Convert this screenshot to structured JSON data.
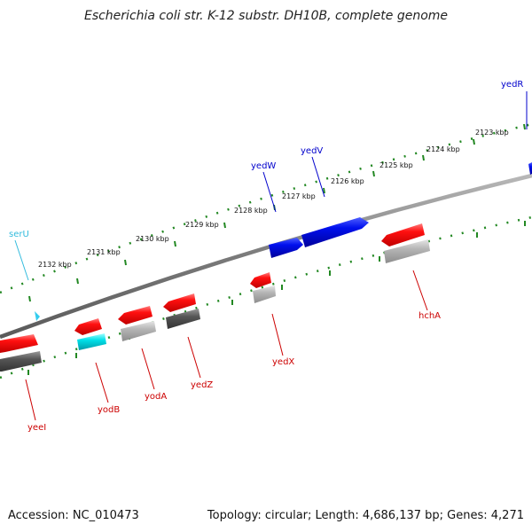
{
  "header": {
    "title": "Escherichia coli str. K-12 substr. DH10B, complete genome"
  },
  "footer": {
    "accession": "Accession: NC_010473",
    "summary": "Topology: circular; Length: 4,686,137 bp; Genes: 4,271"
  },
  "scale_labels": [
    "2123 kbp",
    "2124 kbp",
    "2125 kbp",
    "2126 kbp",
    "2127 kbp",
    "2128 kbp",
    "2129 kbp",
    "2130 kbp",
    "2131 kbp",
    "2132 kbp"
  ],
  "genes": {
    "forward_labels": [
      {
        "name": "yedR",
        "color": "#0000cc"
      },
      {
        "name": "yedV",
        "color": "#0000cc"
      },
      {
        "name": "yedW",
        "color": "#0000cc"
      },
      {
        "name": "serU",
        "color": "#33bbdd"
      }
    ],
    "reverse_labels": [
      {
        "name": "hchA",
        "color": "#cc0000"
      },
      {
        "name": "yedX",
        "color": "#cc0000"
      },
      {
        "name": "yedZ",
        "color": "#cc0000"
      },
      {
        "name": "yodA",
        "color": "#cc0000"
      },
      {
        "name": "yodB",
        "color": "#cc0000"
      },
      {
        "name": "yeeI",
        "color": "#cc0000"
      }
    ]
  },
  "colors": {
    "backbone": "#808080",
    "tick": "#228822",
    "forward_gene": "#0000ee",
    "reverse_gene": "#ee0000",
    "trna": "#00dddd",
    "cds_gray_dark": "#555555",
    "cds_gray_light": "#b0b0b0"
  }
}
